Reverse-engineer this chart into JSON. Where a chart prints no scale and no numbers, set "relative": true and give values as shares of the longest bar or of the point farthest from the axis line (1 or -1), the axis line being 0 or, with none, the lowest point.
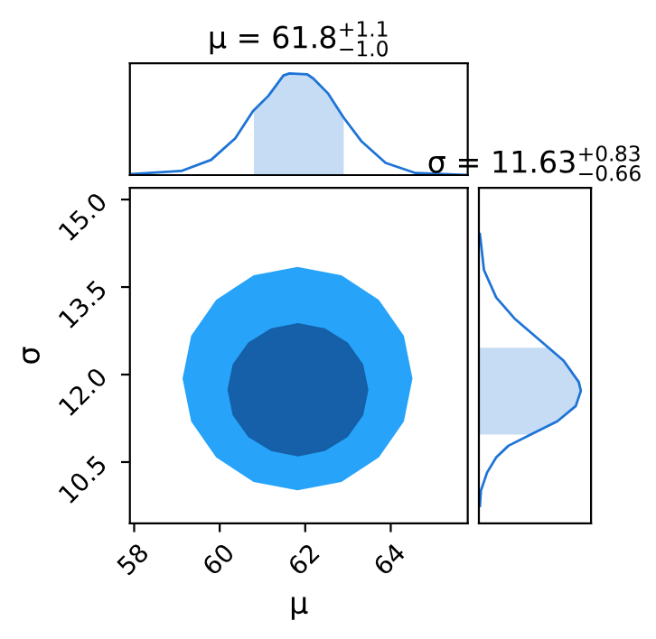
{
  "chart_data": [
    {
      "type": "line",
      "relative": true,
      "title": "μ = 61.8$^{+1.1}$$_{−1.0}$",
      "xlim": [
        57.9,
        65.8
      ],
      "tick_labels": false,
      "series": [
        {
          "color": "#1e74d6",
          "x": [
            57.93,
            59.1,
            59.8,
            60.36,
            60.78,
            61.14,
            61.49,
            61.63,
            62.05,
            62.19,
            62.54,
            62.89,
            63.32,
            63.88,
            64.58,
            65.8
          ],
          "values": [
            0.01,
            0.04,
            0.15,
            0.36,
            0.63,
            0.78,
            0.98,
            1.0,
            0.99,
            0.95,
            0.8,
            0.57,
            0.33,
            0.12,
            0.02,
            0.0
          ]
        }
      ],
      "bands": [
        {
          "axis": "x",
          "from": 60.8,
          "to": 62.9,
          "color": "#c6dcf4"
        }
      ]
    },
    {
      "type": "area",
      "xlabel": "μ",
      "ylabel": "σ",
      "xlim": [
        57.9,
        65.8
      ],
      "ylim": [
        9.45,
        15.2
      ],
      "xticks": [
        58,
        60,
        62,
        64
      ],
      "yticks": [
        10.5,
        {
          "value": 12,
          "label": "12.0"
        },
        13.5,
        {
          "value": 15,
          "label": "15.0"
        }
      ],
      "grid": false,
      "series": [
        {
          "color": "#27a3fa",
          "x": [
            64.49,
            64.29,
            63.71,
            62.84,
            61.82,
            60.8,
            59.93,
            59.35,
            59.15,
            59.35,
            59.93,
            60.8,
            61.82,
            62.84,
            63.71,
            64.29
          ],
          "values": [
            11.93,
            12.66,
            13.27,
            13.69,
            13.83,
            13.69,
            13.27,
            12.66,
            11.93,
            11.2,
            10.59,
            10.17,
            10.03,
            10.17,
            10.59,
            11.2
          ]
        },
        {
          "color": "#1560a8",
          "x": [
            63.46,
            63.34,
            62.98,
            62.45,
            61.83,
            61.21,
            60.68,
            60.32,
            60.2,
            60.32,
            60.68,
            61.21,
            61.83,
            62.45,
            62.98,
            63.34
          ],
          "values": [
            11.74,
            12.17,
            12.54,
            12.78,
            12.87,
            12.78,
            12.54,
            12.17,
            11.74,
            11.31,
            10.94,
            10.7,
            10.61,
            10.7,
            10.94,
            11.31
          ]
        }
      ]
    },
    {
      "type": "line",
      "relative": true,
      "orientation": "horizontal",
      "title": "σ = 11.63$^{+0.83}$$_{−0.66}$",
      "ylim": [
        9.45,
        15.2
      ],
      "tick_labels": false,
      "series": [
        {
          "color": "#1e74d6",
          "x": [
            14.41,
            13.79,
            13.32,
            12.96,
            12.6,
            12.24,
            11.87,
            11.72,
            11.46,
            11.2,
            10.99,
            10.78,
            10.58,
            10.32,
            10.01,
            9.75
          ],
          "values": [
            0.01,
            0.05,
            0.17,
            0.35,
            0.59,
            0.83,
            0.98,
            1.0,
            0.95,
            0.77,
            0.53,
            0.29,
            0.17,
            0.08,
            0.02,
            0.01
          ]
        }
      ],
      "bands": [
        {
          "axis": "y",
          "from": 10.97,
          "to": 12.46,
          "color": "#c6dcf4"
        }
      ]
    }
  ]
}
